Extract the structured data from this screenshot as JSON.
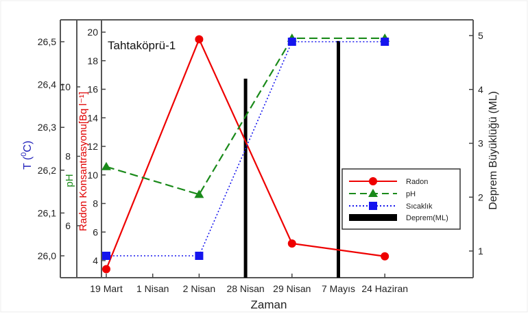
{
  "chart_data": {
    "type": "line",
    "title": "Tahtaköprü-1",
    "xlabel": "Zaman",
    "categories": [
      "19 Mart",
      "1 Nisan",
      "2 Nisan",
      "28 Nisan",
      "29 Nisan",
      "7 Mayıs",
      "24 Haziran"
    ],
    "axes": {
      "temperature": {
        "label": "T (0C)",
        "label_superscript": "0",
        "ticks": [
          "26,0",
          "26,1",
          "26,2",
          "26,3",
          "26,4",
          "26,5"
        ],
        "range": [
          25.96,
          26.55
        ],
        "color": "#2222bb"
      },
      "ph": {
        "label": "pH",
        "ticks": [
          "6",
          "8",
          "10"
        ],
        "color": "#1a8a1a"
      },
      "radon": {
        "label": "Radon Konsantrasyonu[Bq l⁻¹]",
        "ticks": [
          "4",
          "6",
          "8",
          "10",
          "12",
          "14",
          "16",
          "18",
          "20"
        ],
        "range": [
          3,
          20.5
        ],
        "color": "#e00000"
      },
      "earthquake": {
        "label": "Deprem Büyüklüğü (ML)",
        "ticks": [
          "1",
          "2",
          "3",
          "4",
          "5"
        ],
        "range": [
          0.5,
          5.4
        ],
        "color": "#222222"
      }
    },
    "series": [
      {
        "name": "Radon",
        "axis": "radon",
        "style": "solid",
        "marker": "circle",
        "color": "#ee0000",
        "points": [
          {
            "x": "19 Mart",
            "y": 3.4
          },
          {
            "x": "2 Nisan",
            "y": 19.5
          },
          {
            "x": "29 Nisan",
            "y": 5.2
          },
          {
            "x": "24 Haziran",
            "y": 4.3
          }
        ]
      },
      {
        "name": "pH",
        "axis": "ph",
        "style": "dashed",
        "marker": "triangle",
        "color": "#1a8a1a",
        "points": [
          {
            "x": "19 Mart",
            "y": 7.7
          },
          {
            "x": "2 Nisan",
            "y": 6.9
          },
          {
            "x": "29 Nisan",
            "y": 11.4
          },
          {
            "x": "24 Haziran",
            "y": 11.4
          }
        ]
      },
      {
        "name": "Sıcaklık",
        "axis": "temperature",
        "style": "dotted",
        "marker": "square",
        "color": "#1515ee",
        "points": [
          {
            "x": "19 Mart",
            "y": 26.0
          },
          {
            "x": "2 Nisan",
            "y": 26.0
          },
          {
            "x": "29 Nisan",
            "y": 26.5
          },
          {
            "x": "24 Haziran",
            "y": 26.5
          }
        ]
      },
      {
        "name": "Deprem(ML)",
        "axis": "earthquake",
        "style": "bar",
        "color": "#000000",
        "points": [
          {
            "x": "28 Nisan",
            "y": 4.2
          },
          {
            "x": "7 Mayıs",
            "y": 4.9
          }
        ]
      }
    ],
    "legend": {
      "position": "right-middle",
      "entries": [
        "Radon",
        "pH",
        "Sıcaklık",
        "Deprem(ML)"
      ]
    },
    "grid": false
  }
}
